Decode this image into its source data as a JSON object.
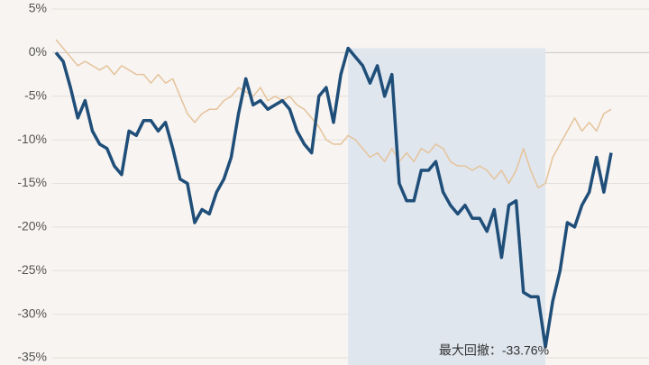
{
  "chart_data": {
    "type": "line",
    "annotation": "最大回撤：-33.76%",
    "ylim": [
      -35,
      5
    ],
    "yticks": [
      {
        "value": 5,
        "label": "5%"
      },
      {
        "value": 0,
        "label": "0%"
      },
      {
        "value": -5,
        "label": "-5%"
      },
      {
        "value": -10,
        "label": "-10%"
      },
      {
        "value": -15,
        "label": "-15%"
      },
      {
        "value": -20,
        "label": "-20%"
      },
      {
        "value": -25,
        "label": "-25%"
      },
      {
        "value": -30,
        "label": "-30%"
      },
      {
        "value": -35,
        "label": "-35%"
      }
    ],
    "grid": true,
    "series": [
      {
        "color": "#e6c39b",
        "width": 1.5,
        "values": [
          1.5,
          0.5,
          -0.5,
          -1.5,
          -1,
          -1.5,
          -2,
          -1.5,
          -2.5,
          -1.5,
          -2,
          -2.5,
          -2.5,
          -3.5,
          -2.5,
          -3.5,
          -3,
          -5,
          -7,
          -8,
          -7,
          -6.5,
          -6.5,
          -5.5,
          -5,
          -4,
          -4.5,
          -5,
          -4,
          -5.5,
          -5,
          -5.5,
          -5,
          -6,
          -6.5,
          -7.5,
          -8.5,
          -10,
          -10.5,
          -10.5,
          -9.5,
          -10,
          -11,
          -12,
          -11.5,
          -12.5,
          -11,
          -12.5,
          -11.5,
          -12.5,
          -11,
          -11.5,
          -10.5,
          -11,
          -12.5,
          -13,
          -13,
          -13.5,
          -13,
          -13.5,
          -14.5,
          -13.5,
          -15,
          -13.5,
          -11,
          -13.5,
          -15.5,
          -15,
          -12,
          -10.5,
          -9,
          -7.5,
          -9,
          -8,
          -9,
          -7,
          -6.5
        ]
      },
      {
        "color": "#1f4e79",
        "width": 3.5,
        "values": [
          0,
          -1,
          -4,
          -7.5,
          -5.5,
          -9,
          -10.5,
          -11,
          -13,
          -14,
          -9,
          -9.5,
          -7.8,
          -7.8,
          -9,
          -8,
          -11,
          -14.5,
          -15,
          -19.5,
          -18,
          -18.5,
          -16,
          -14.5,
          -12,
          -7,
          -3,
          -6,
          -5.5,
          -6.5,
          -6,
          -5.5,
          -6.5,
          -9,
          -10.5,
          -11.5,
          -5,
          -4,
          -8,
          -2.5,
          0.5,
          -0.5,
          -1.5,
          -3.5,
          -1.5,
          -5,
          -2.5,
          -15,
          -17,
          -17,
          -13.5,
          -13.5,
          -12.5,
          -16,
          -17.5,
          -18.5,
          -17.5,
          -19,
          -19,
          -20.5,
          -18,
          -23.5,
          -17.5,
          -17,
          -27.5,
          -28,
          -28,
          -33.76,
          -28.5,
          -25,
          -19.5,
          -20,
          -17.5,
          -16,
          -12,
          -16,
          -11.5
        ]
      }
    ]
  }
}
